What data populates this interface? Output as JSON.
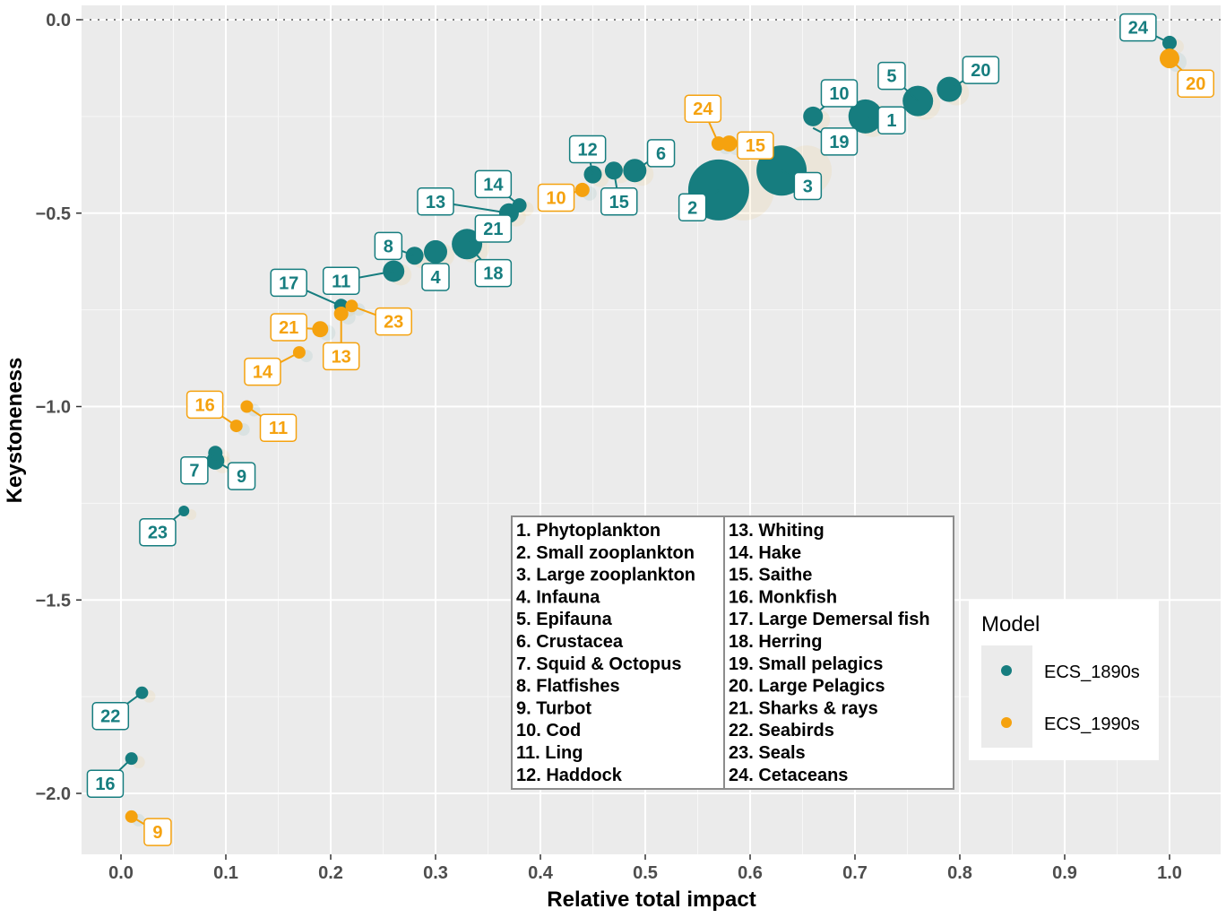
{
  "chart_data": {
    "type": "scatter",
    "xlabel": "Relative total impact",
    "ylabel": "Keystoneness",
    "xlim": [
      -0.04,
      1.05
    ],
    "ylim": [
      -2.16,
      0.04
    ],
    "x_ticks": [
      0.0,
      0.1,
      0.2,
      0.3,
      0.4,
      0.5,
      0.6,
      0.7,
      0.8,
      0.9,
      1.0
    ],
    "x_tick_labels": [
      "0.0",
      "0.1",
      "0.2",
      "0.3",
      "0.4",
      "0.5",
      "0.6",
      "0.7",
      "0.8",
      "0.9",
      "1.0"
    ],
    "y_ticks": [
      0.0,
      -0.5,
      -1.0,
      -1.5,
      -2.0
    ],
    "y_tick_labels": [
      "0.0",
      "−0.5",
      "−1.0",
      "−1.5",
      "−2.0"
    ],
    "reference_line_y": 0.0,
    "grid": true,
    "legend": {
      "title": "Model",
      "placement": "right",
      "entries": [
        {
          "name": "ECS_1890s",
          "color": "#167D7F"
        },
        {
          "name": "ECS_1990s",
          "color": "#F5A20F"
        }
      ]
    },
    "series": [
      {
        "name": "ECS_1890s",
        "color": "#167D7F",
        "label_border": "#167D7F",
        "points": [
          {
            "id": "24",
            "x": 1.0,
            "y": -0.06,
            "size": 8,
            "lx": 0.97,
            "ly": -0.02
          },
          {
            "id": "20",
            "x": 0.79,
            "y": -0.18,
            "size": 14,
            "lx": 0.82,
            "ly": -0.13
          },
          {
            "id": "5",
            "x": 0.76,
            "y": -0.21,
            "size": 17,
            "lx": 0.735,
            "ly": -0.145
          },
          {
            "id": "1",
            "x": 0.71,
            "y": -0.25,
            "size": 19,
            "lx": 0.735,
            "ly": -0.26
          },
          {
            "id": "10",
            "x": 0.66,
            "y": -0.25,
            "size": 11,
            "lx": 0.685,
            "ly": -0.19
          },
          {
            "id": "19",
            "x": 0.66,
            "y": -0.28,
            "size": 0,
            "lx": 0.685,
            "ly": -0.315
          },
          {
            "id": "3",
            "x": 0.63,
            "y": -0.39,
            "size": 28,
            "lx": 0.655,
            "ly": -0.43
          },
          {
            "id": "2",
            "x": 0.57,
            "y": -0.44,
            "size": 34,
            "lx": 0.545,
            "ly": -0.485
          },
          {
            "id": "6",
            "x": 0.49,
            "y": -0.39,
            "size": 13,
            "lx": 0.515,
            "ly": -0.345
          },
          {
            "id": "12",
            "x": 0.45,
            "y": -0.4,
            "size": 10,
            "lx": 0.445,
            "ly": -0.335
          },
          {
            "id": "15",
            "x": 0.47,
            "y": -0.39,
            "size": 10,
            "lx": 0.475,
            "ly": -0.47
          },
          {
            "id": "14",
            "x": 0.38,
            "y": -0.48,
            "size": 8,
            "lx": 0.355,
            "ly": -0.425
          },
          {
            "id": "13",
            "x": 0.37,
            "y": -0.5,
            "size": 11,
            "lx": 0.3,
            "ly": -0.47
          },
          {
            "id": "21",
            "x": 0.33,
            "y": -0.58,
            "size": 0,
            "lx": 0.355,
            "ly": -0.54
          },
          {
            "id": "18",
            "x": 0.33,
            "y": -0.58,
            "size": 17,
            "lx": 0.355,
            "ly": -0.655
          },
          {
            "id": "4",
            "x": 0.3,
            "y": -0.6,
            "size": 13,
            "lx": 0.3,
            "ly": -0.665
          },
          {
            "id": "8",
            "x": 0.28,
            "y": -0.61,
            "size": 10,
            "lx": 0.255,
            "ly": -0.585
          },
          {
            "id": "11",
            "x": 0.26,
            "y": -0.65,
            "size": 12,
            "lx": 0.21,
            "ly": -0.675
          },
          {
            "id": "17",
            "x": 0.21,
            "y": -0.74,
            "size": 8,
            "lx": 0.16,
            "ly": -0.68
          },
          {
            "id": "9",
            "x": 0.09,
            "y": -1.14,
            "size": 10,
            "lx": 0.115,
            "ly": -1.18
          },
          {
            "id": "7",
            "x": 0.09,
            "y": -1.12,
            "size": 8,
            "lx": 0.07,
            "ly": -1.165
          },
          {
            "id": "23",
            "x": 0.06,
            "y": -1.27,
            "size": 6,
            "lx": 0.035,
            "ly": -1.325
          },
          {
            "id": "22",
            "x": 0.02,
            "y": -1.74,
            "size": 7,
            "lx": -0.01,
            "ly": -1.8
          },
          {
            "id": "16",
            "x": 0.01,
            "y": -1.91,
            "size": 7,
            "lx": -0.015,
            "ly": -1.975
          }
        ]
      },
      {
        "name": "ECS_1990s",
        "color": "#F5A20F",
        "label_border": "#F5A20F",
        "points": [
          {
            "id": "20",
            "x": 1.0,
            "y": -0.1,
            "size": 11,
            "lx": 1.025,
            "ly": -0.165
          },
          {
            "id": "24",
            "x": 0.57,
            "y": -0.32,
            "size": 8,
            "lx": 0.555,
            "ly": -0.23
          },
          {
            "id": "15",
            "x": 0.58,
            "y": -0.32,
            "size": 9,
            "lx": 0.605,
            "ly": -0.325
          },
          {
            "id": "10",
            "x": 0.44,
            "y": -0.44,
            "size": 8,
            "lx": 0.415,
            "ly": -0.46
          },
          {
            "id": "23",
            "x": 0.22,
            "y": -0.74,
            "size": 7,
            "lx": 0.26,
            "ly": -0.78
          },
          {
            "id": "21",
            "x": 0.19,
            "y": -0.8,
            "size": 9,
            "lx": 0.16,
            "ly": -0.795
          },
          {
            "id": "13",
            "x": 0.21,
            "y": -0.76,
            "size": 8,
            "lx": 0.21,
            "ly": -0.87
          },
          {
            "id": "14",
            "x": 0.17,
            "y": -0.86,
            "size": 7,
            "lx": 0.135,
            "ly": -0.91
          },
          {
            "id": "16",
            "x": 0.11,
            "y": -1.05,
            "size": 7,
            "lx": 0.08,
            "ly": -0.995
          },
          {
            "id": "11",
            "x": 0.12,
            "y": -1.0,
            "size": 7,
            "lx": 0.15,
            "ly": -1.055
          },
          {
            "id": "9",
            "x": 0.01,
            "y": -2.06,
            "size": 7,
            "lx": 0.035,
            "ly": -2.1
          }
        ]
      }
    ],
    "key_table": {
      "left": [
        "1. Phytoplankton",
        "2. Small zooplankton",
        "3. Large zooplankton",
        "4. Infauna",
        "5. Epifauna",
        "6. Crustacea",
        "7. Squid & Octopus",
        "8. Flatfishes",
        "9. Turbot",
        "10. Cod",
        "11. Ling",
        "12. Haddock"
      ],
      "right": [
        "13. Whiting",
        "14. Hake",
        "15. Saithe",
        "16. Monkfish",
        "17. Large Demersal fish",
        "18. Herring",
        "19. Small pelagics",
        "20. Large Pelagics",
        "21. Sharks & rays",
        "22. Seabirds",
        "23. Seals",
        "24. Cetaceans"
      ]
    }
  }
}
